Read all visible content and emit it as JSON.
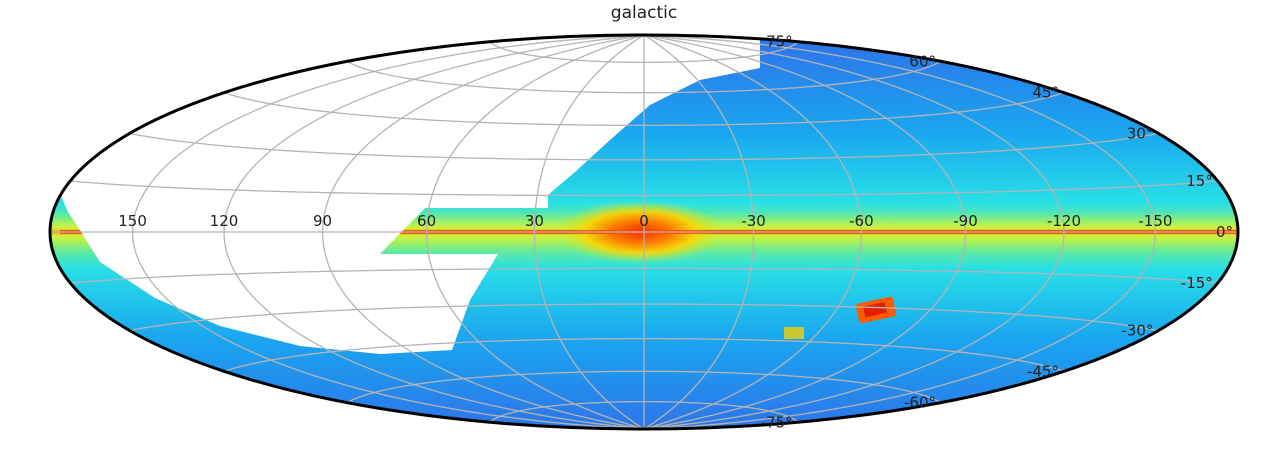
{
  "chart_data": {
    "type": "heatmap",
    "title": "galactic",
    "projection": "hammer-aitoff",
    "coordinate_frame": "galactic",
    "longitude_ticks": [
      150,
      120,
      90,
      60,
      30,
      0,
      -30,
      -60,
      -90,
      -120,
      -150
    ],
    "latitude_ticks": [
      75,
      60,
      45,
      30,
      15,
      0,
      -15,
      -30,
      -45,
      -60,
      -75
    ],
    "longitude_tick_labels": [
      "150",
      "120",
      "90",
      "60",
      "30",
      "0",
      "-30",
      "-60",
      "-90",
      "-120",
      "-150"
    ],
    "latitude_tick_labels": [
      "75°",
      "60°",
      "45°",
      "30°",
      "15°",
      "0°",
      "-15°",
      "-30°",
      "-45°",
      "-60°",
      "-75°"
    ],
    "grid": true,
    "colormap": "jet",
    "colors": {
      "background_low": "#2b78ee",
      "mid": "#1fd3f0",
      "disk": "#8ef25a",
      "high": "#ff3b00",
      "no_data": "#ffffff",
      "grid": "#b8b8b8",
      "outline": "#000000"
    },
    "coverage_missing_region": "north-east quadrant (l ≈ 30 to 180, b > -20) is blank",
    "features": [
      {
        "kind": "bulge",
        "l": 0,
        "b": 0,
        "level": "high"
      },
      {
        "kind": "cloud",
        "l": -73,
        "b": -23,
        "level": "high"
      },
      {
        "kind": "cloud",
        "l": -46,
        "b": -31,
        "level": "medium"
      }
    ]
  }
}
